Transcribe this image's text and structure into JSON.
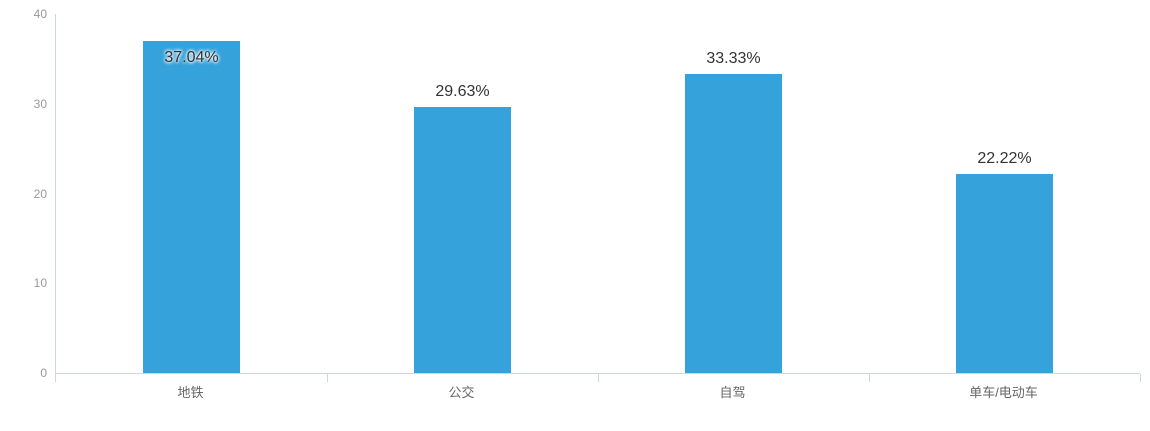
{
  "chart_data": {
    "type": "bar",
    "title": "",
    "xlabel": "",
    "ylabel": "",
    "categories": [
      "地铁",
      "公交",
      "自驾",
      "单车/电动车"
    ],
    "values": [
      37.04,
      29.63,
      33.33,
      22.22
    ],
    "data_labels": [
      "37.04%",
      "29.63%",
      "33.33%",
      "22.22%"
    ],
    "label_position": [
      "inside-top",
      "top",
      "top",
      "top"
    ],
    "ylim": [
      0,
      40
    ],
    "yticks": [
      "0",
      "10",
      "20",
      "30",
      "40"
    ],
    "grid": false,
    "legend": false,
    "colors": {
      "bar": "#36a2db",
      "axis_line": "#ccd6eb",
      "y_tick_label": "#999999",
      "x_tick_label": "#666666",
      "data_label": "#333333",
      "background": "#ffffff"
    }
  }
}
